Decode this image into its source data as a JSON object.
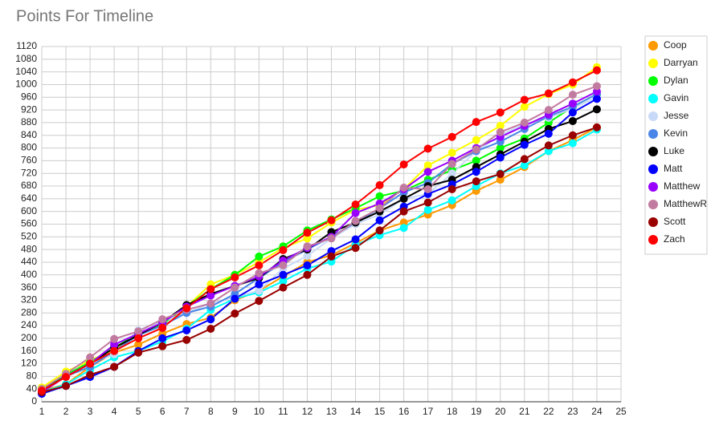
{
  "chart_data": {
    "type": "line",
    "title": "Points For Timeline",
    "x": [
      1,
      2,
      3,
      4,
      5,
      6,
      7,
      8,
      9,
      10,
      11,
      12,
      13,
      14,
      15,
      16,
      17,
      18,
      19,
      20,
      21,
      22,
      23,
      24
    ],
    "xlim": [
      1,
      25
    ],
    "xticks": [
      1,
      2,
      3,
      4,
      5,
      6,
      7,
      8,
      9,
      10,
      11,
      12,
      13,
      14,
      15,
      16,
      17,
      18,
      19,
      20,
      21,
      22,
      23,
      24,
      25
    ],
    "ylim": [
      0,
      1120
    ],
    "yticks": [
      0,
      40,
      80,
      120,
      160,
      200,
      240,
      280,
      320,
      360,
      400,
      440,
      480,
      520,
      560,
      600,
      640,
      680,
      720,
      760,
      800,
      840,
      880,
      920,
      960,
      1000,
      1040,
      1080,
      1120
    ],
    "grid": true,
    "legend": "right",
    "series": [
      {
        "name": "Coop",
        "color": "#ff9900",
        "values": [
          35,
          55,
          110,
          155,
          180,
          215,
          245,
          265,
          320,
          350,
          395,
          440,
          462,
          500,
          540,
          565,
          590,
          620,
          665,
          700,
          740,
          790,
          825,
          865
        ]
      },
      {
        "name": "Darryan",
        "color": "#ffff00",
        "values": [
          45,
          95,
          130,
          165,
          210,
          245,
          300,
          370,
          400,
          440,
          485,
          515,
          565,
          605,
          620,
          670,
          745,
          785,
          825,
          870,
          930,
          970,
          1000,
          1055
        ]
      },
      {
        "name": "Dylan",
        "color": "#00ff00",
        "values": [
          40,
          85,
          125,
          170,
          215,
          245,
          300,
          355,
          400,
          458,
          490,
          540,
          575,
          610,
          648,
          665,
          700,
          730,
          760,
          800,
          830,
          880,
          930,
          970
        ]
      },
      {
        "name": "Gavin",
        "color": "#00ffff",
        "values": [
          30,
          55,
          100,
          140,
          160,
          190,
          230,
          290,
          325,
          345,
          380,
          420,
          442,
          495,
          525,
          548,
          605,
          635,
          680,
          720,
          745,
          790,
          815,
          858
        ]
      },
      {
        "name": "Jesse",
        "color": "#c9daf8",
        "values": [
          30,
          80,
          120,
          150,
          225,
          255,
          280,
          310,
          330,
          350,
          420,
          460,
          515,
          560,
          590,
          640,
          655,
          720,
          790,
          840,
          875,
          895,
          925,
          960
        ]
      },
      {
        "name": "Kevin",
        "color": "#4a86e8",
        "values": [
          30,
          80,
          110,
          160,
          210,
          240,
          280,
          300,
          340,
          390,
          440,
          480,
          520,
          565,
          610,
          660,
          690,
          750,
          790,
          820,
          860,
          900,
          930,
          970
        ]
      },
      {
        "name": "Luke",
        "color": "#000000",
        "values": [
          35,
          80,
          120,
          170,
          210,
          250,
          305,
          340,
          365,
          390,
          450,
          480,
          535,
          565,
          600,
          640,
          680,
          700,
          740,
          780,
          820,
          860,
          885,
          922
        ]
      },
      {
        "name": "Matt",
        "color": "#0000ff",
        "values": [
          25,
          50,
          78,
          110,
          160,
          200,
          225,
          260,
          325,
          370,
          400,
          430,
          475,
          512,
          572,
          615,
          655,
          685,
          725,
          770,
          810,
          845,
          912,
          955
        ]
      },
      {
        "name": "Matthew",
        "color": "#9900ff",
        "values": [
          30,
          80,
          120,
          180,
          215,
          250,
          300,
          335,
          365,
          395,
          445,
          485,
          520,
          595,
          625,
          670,
          725,
          760,
          800,
          835,
          870,
          905,
          940,
          978
        ]
      },
      {
        "name": "MatthewR",
        "color": "#c27ba0",
        "values": [
          40,
          88,
          140,
          198,
          222,
          260,
          290,
          310,
          360,
          405,
          430,
          490,
          515,
          570,
          610,
          675,
          670,
          750,
          795,
          850,
          880,
          920,
          968,
          995
        ]
      },
      {
        "name": "Scott",
        "color": "#990000",
        "values": [
          30,
          50,
          85,
          110,
          155,
          175,
          195,
          230,
          278,
          318,
          360,
          400,
          458,
          485,
          540,
          600,
          628,
          670,
          695,
          718,
          765,
          808,
          840,
          865
        ]
      },
      {
        "name": "Zach",
        "color": "#ff0000",
        "values": [
          35,
          78,
          120,
          160,
          200,
          233,
          295,
          355,
          392,
          430,
          478,
          533,
          572,
          622,
          683,
          748,
          798,
          835,
          882,
          912,
          952,
          972,
          1007,
          1045
        ]
      }
    ]
  }
}
